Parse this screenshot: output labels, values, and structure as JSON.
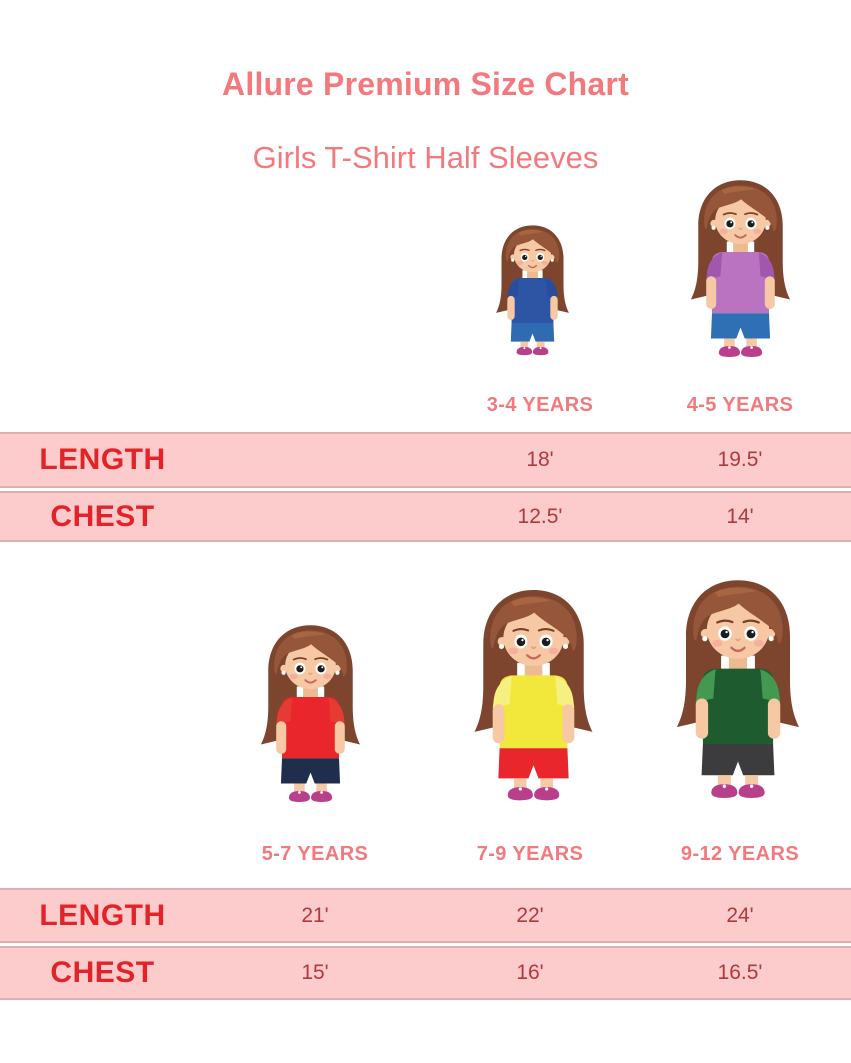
{
  "title": "Allure Premium Size Chart",
  "subtitle": "Girls T-Shirt Half Sleeves",
  "labels": {
    "length": "LENGTH",
    "chest": "CHEST"
  },
  "colors": {
    "accent_pink": "#F4797D",
    "row_bg": "#FCCBCB",
    "row_border": "#DDAFAF",
    "label_red": "#E3232A",
    "value_red": "#AF3A3E"
  },
  "girl_base": {
    "hair_back": "#7D452E",
    "hair_front": "#955639",
    "hair_shine": "#AA6743",
    "skin": "#F6C9A4",
    "skin_shade": "#EDBB92",
    "cheek": "#F2A29B",
    "shoe": "#B93E8C",
    "mouth": "#C4685C",
    "brow": "#77432C"
  },
  "groups": [
    {
      "columns": [
        {
          "age": "3-4 YEARS",
          "length": "18'",
          "chest": "12.5'",
          "girl": {
            "shirt": "#2E54A4",
            "sleeve": "#2A4C9D",
            "shorts": "#2F6BB3"
          }
        },
        {
          "age": "4-5 YEARS",
          "length": "19.5'",
          "chest": "14'",
          "girl": {
            "shirt": "#B973C0",
            "sleeve": "#A157AD",
            "shorts": "#2F6FB4"
          }
        }
      ]
    },
    {
      "columns": [
        {
          "age": "5-7 YEARS",
          "length": "21'",
          "chest": "15'",
          "girl": {
            "shirt": "#E8262C",
            "sleeve": "#E63B33",
            "shorts": "#1F2E4D"
          }
        },
        {
          "age": "7-9 YEARS",
          "length": "22'",
          "chest": "16'",
          "girl": {
            "shirt": "#F1E83B",
            "sleeve": "#F6F080",
            "shorts": "#E8262C"
          }
        },
        {
          "age": "9-12 YEARS",
          "length": "24'",
          "chest": "16.5'",
          "girl": {
            "shirt": "#1E5C2F",
            "sleeve": "#42994F",
            "shorts": "#3C3C3E"
          }
        }
      ]
    }
  ],
  "chart_data": {
    "type": "table",
    "title": "Allure Premium Size Chart",
    "subtitle": "Girls T-Shirt Half Sleeves",
    "tables": [
      {
        "categories": [
          "3-4 YEARS",
          "4-5 YEARS"
        ],
        "rows": [
          {
            "label": "LENGTH",
            "values": [
              "18'",
              "19.5'"
            ]
          },
          {
            "label": "CHEST",
            "values": [
              "12.5'",
              "14'"
            ]
          }
        ]
      },
      {
        "categories": [
          "5-7 YEARS",
          "7-9 YEARS",
          "9-12 YEARS"
        ],
        "rows": [
          {
            "label": "LENGTH",
            "values": [
              "21'",
              "22'",
              "24'"
            ]
          },
          {
            "label": "CHEST",
            "values": [
              "15'",
              "16'",
              "16.5'"
            ]
          }
        ]
      }
    ]
  }
}
